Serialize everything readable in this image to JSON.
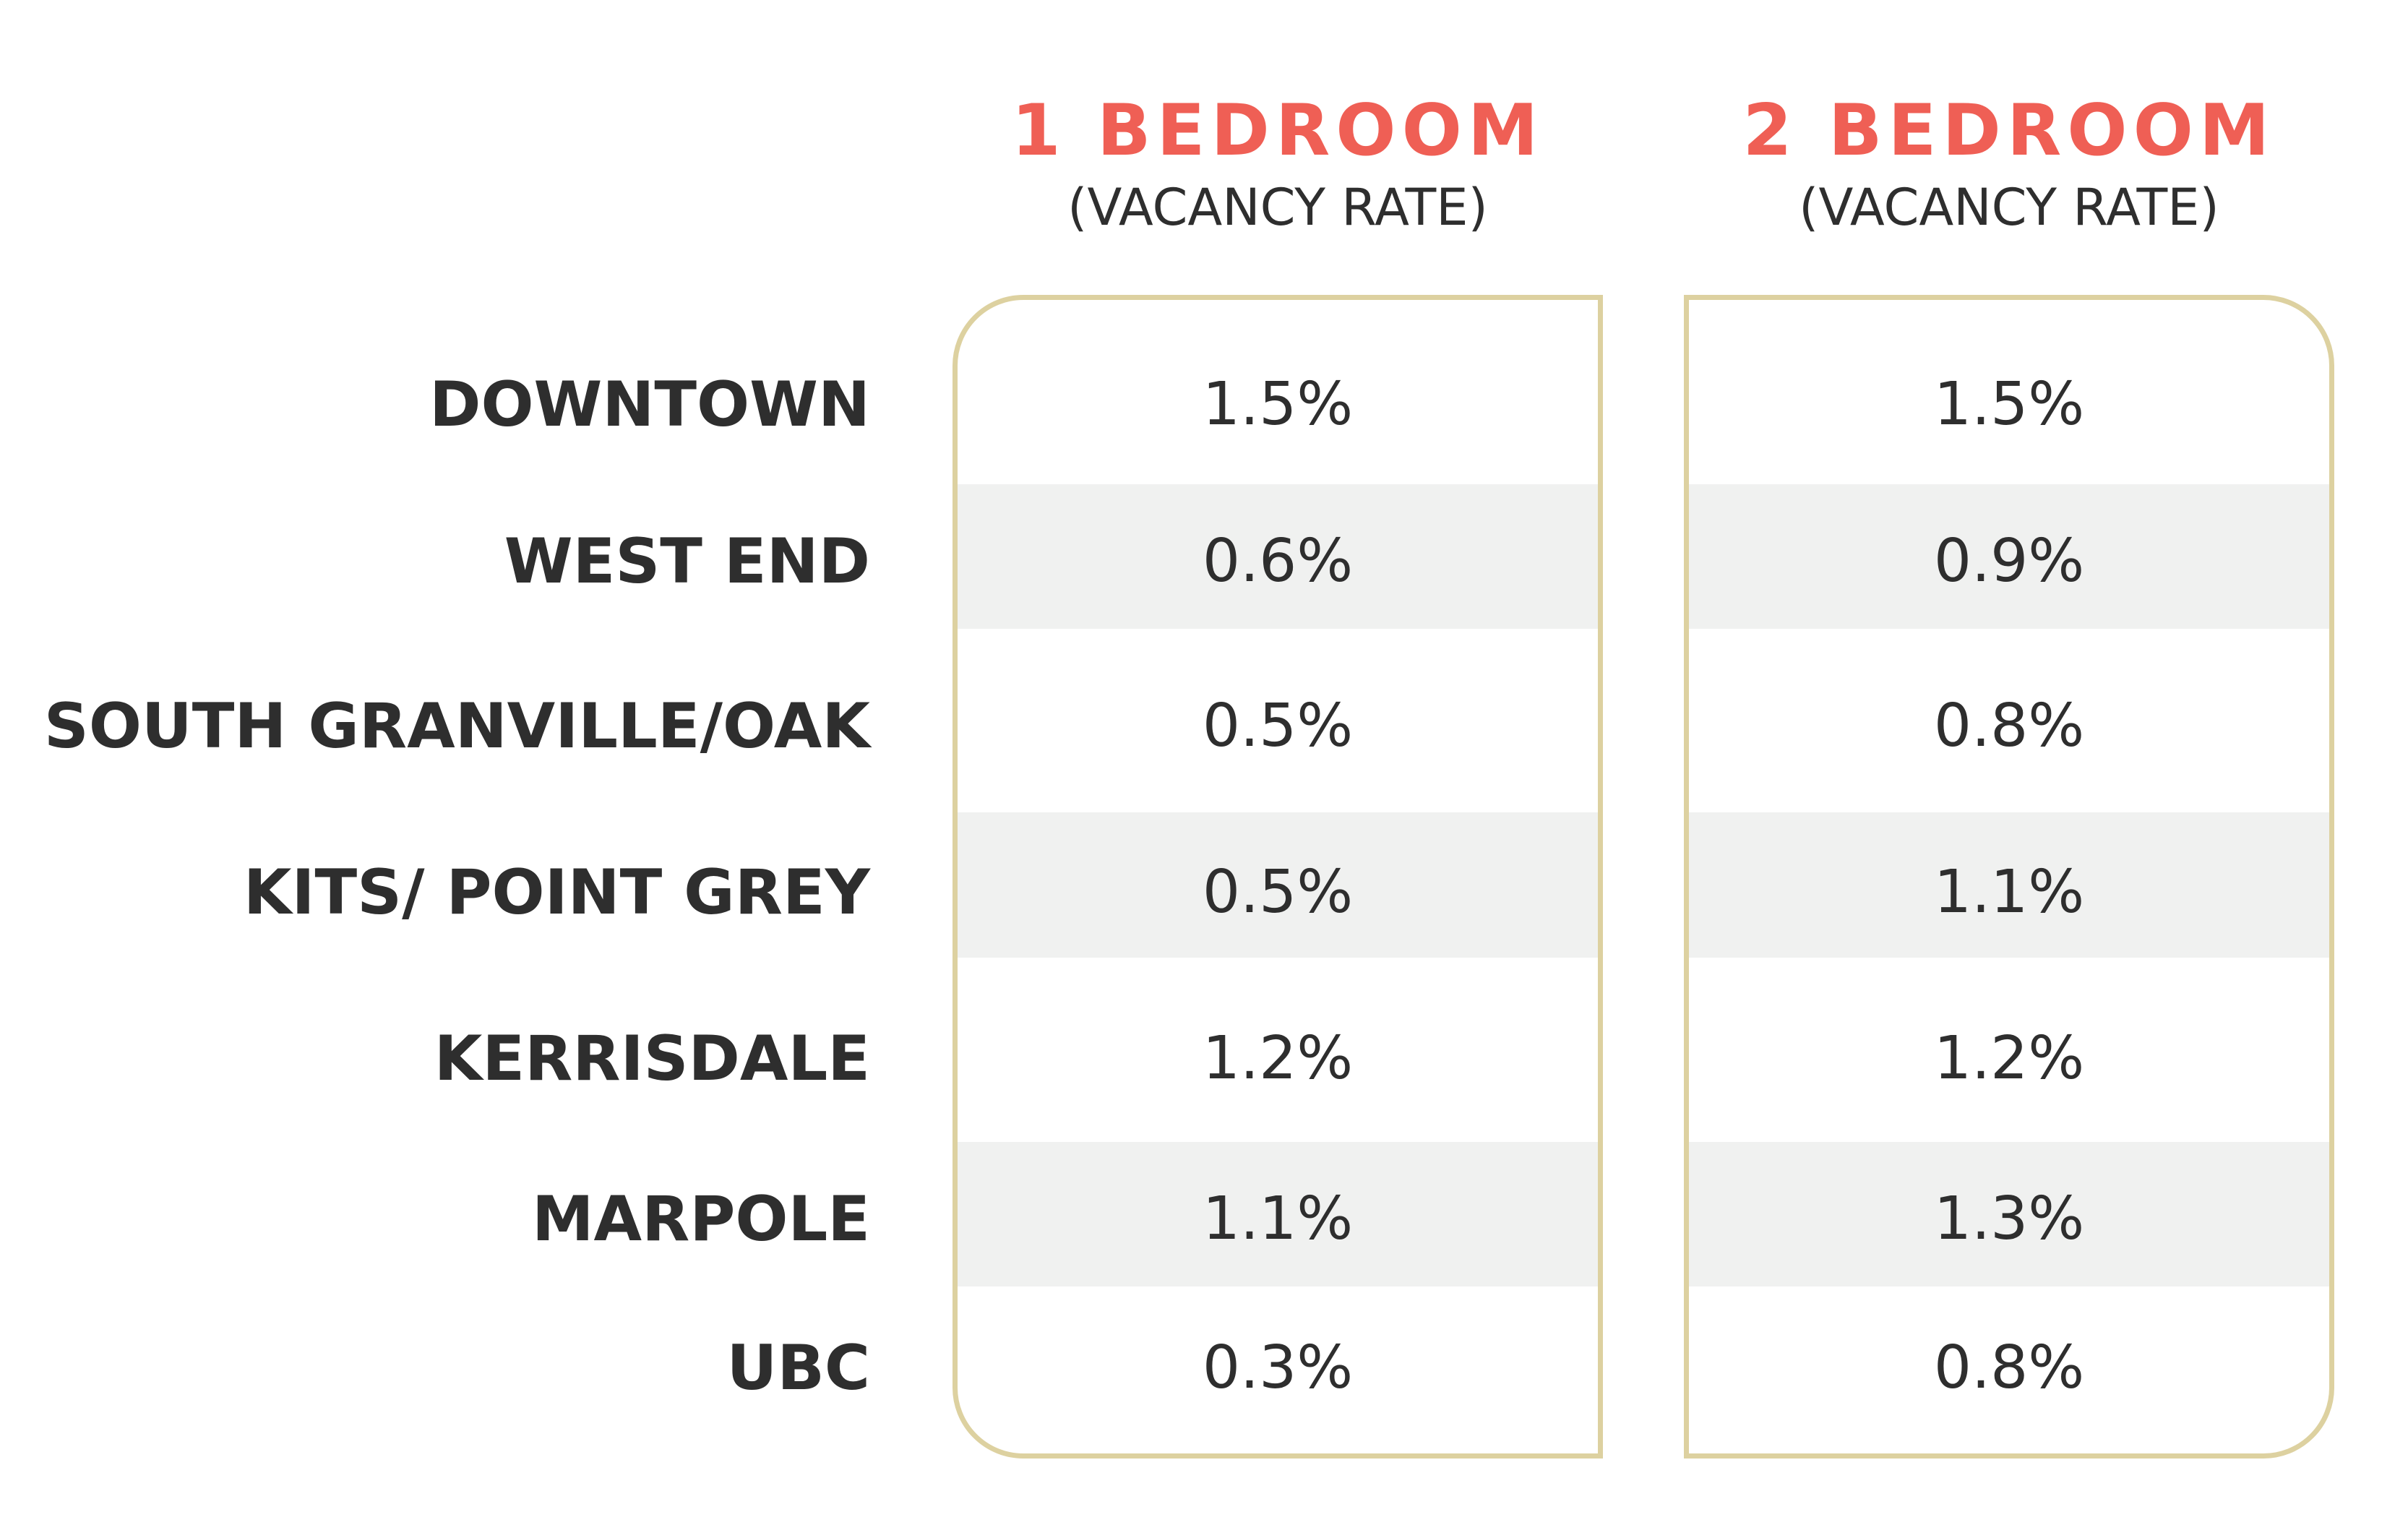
{
  "chart_data": {
    "type": "table",
    "columns": [
      {
        "title": "1 BEDROOM",
        "subtitle": "(VACANCY RATE)"
      },
      {
        "title": "2 BEDROOM",
        "subtitle": "(VACANCY RATE)"
      }
    ],
    "rows": [
      {
        "label": "DOWNTOWN",
        "values": [
          "1.5%",
          "1.5%"
        ]
      },
      {
        "label": "WEST END",
        "values": [
          "0.6%",
          "0.9%"
        ]
      },
      {
        "label": "SOUTH GRANVILLE/OAK",
        "values": [
          "0.5%",
          "0.8%"
        ]
      },
      {
        "label": "KITS/ POINT GREY",
        "values": [
          "0.5%",
          "1.1%"
        ]
      },
      {
        "label": "KERRISDALE",
        "values": [
          "1.2%",
          "1.2%"
        ]
      },
      {
        "label": "MARPOLE",
        "values": [
          "1.1%",
          "1.3%"
        ]
      },
      {
        "label": "UBC",
        "values": [
          "0.3%",
          "0.8%"
        ]
      }
    ],
    "colors": {
      "header_accent": "#ef5f55",
      "text": "#2e2e2e",
      "panel_border": "#ddd1a0",
      "band_fill": "#f0f1f0"
    }
  }
}
